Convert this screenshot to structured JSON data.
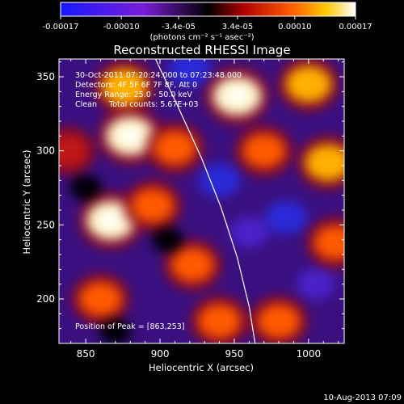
{
  "colorbar": {
    "tick_labels": [
      "-0.00017",
      "-0.00010",
      "-3.4e-05",
      "3.4e-05",
      "0.00010",
      "0.00017"
    ],
    "unit_label": "(photons cm⁻² s⁻¹ asec⁻²)"
  },
  "chart_data": {
    "type": "heatmap",
    "title": "Reconstructed RHESSI Image",
    "xlabel": "Heliocentric X (arcsec)",
    "ylabel": "Heliocentric Y (arcsec)",
    "xlim": [
      832,
      1024
    ],
    "ylim": [
      170,
      362
    ],
    "xticks": [
      850,
      900,
      950,
      1000
    ],
    "yticks": [
      200,
      250,
      300,
      350
    ],
    "color_range": [
      -0.00017,
      0.00017
    ],
    "peak": [
      863,
      253
    ],
    "limb_curve": [
      [
        897,
        362
      ],
      [
        912,
        330
      ],
      [
        928,
        295
      ],
      [
        941,
        262
      ],
      [
        952,
        228
      ],
      [
        960,
        195
      ],
      [
        964,
        170
      ]
    ],
    "blobs": [
      {
        "x": 880,
        "y": 310,
        "v": 1.0
      },
      {
        "x": 867,
        "y": 253,
        "v": 1.0
      },
      {
        "x": 910,
        "y": 302,
        "v": 0.7
      },
      {
        "x": 876,
        "y": 343,
        "v": 0.8
      },
      {
        "x": 860,
        "y": 200,
        "v": 0.6
      },
      {
        "x": 922,
        "y": 223,
        "v": 0.75
      },
      {
        "x": 952,
        "y": 337,
        "v": 0.95
      },
      {
        "x": 1000,
        "y": 345,
        "v": 0.9
      },
      {
        "x": 970,
        "y": 300,
        "v": 0.7
      },
      {
        "x": 1013,
        "y": 292,
        "v": 0.85
      },
      {
        "x": 1018,
        "y": 238,
        "v": 0.7
      },
      {
        "x": 980,
        "y": 185,
        "v": 0.65
      },
      {
        "x": 940,
        "y": 185,
        "v": 0.6
      },
      {
        "x": 838,
        "y": 300,
        "v": 0.5
      },
      {
        "x": 895,
        "y": 263,
        "v": 0.6
      },
      {
        "x": 960,
        "y": 245,
        "v": -0.7
      },
      {
        "x": 985,
        "y": 255,
        "v": -0.9
      },
      {
        "x": 940,
        "y": 280,
        "v": -0.8
      },
      {
        "x": 870,
        "y": 178,
        "v": -0.5
      },
      {
        "x": 920,
        "y": 355,
        "v": -0.8
      },
      {
        "x": 1005,
        "y": 210,
        "v": -0.6
      },
      {
        "x": 850,
        "y": 275,
        "v": -0.5
      },
      {
        "x": 905,
        "y": 240,
        "v": -0.4
      }
    ]
  },
  "annotations": {
    "time_range": "30-Oct-2011 07:20:24.000 to 07:23:48.000",
    "detectors": "Detectors: 4F 5F 6F 7F 8F, Att 0",
    "energy_range": "Energy Range: 25.0 - 50.0 keV",
    "algorithm": "Clean     Total counts: 5.67E+03",
    "peak_position": "Position of Peak = [863,253]"
  },
  "footer": {
    "timestamp": "10-Aug-2013 07:09"
  }
}
